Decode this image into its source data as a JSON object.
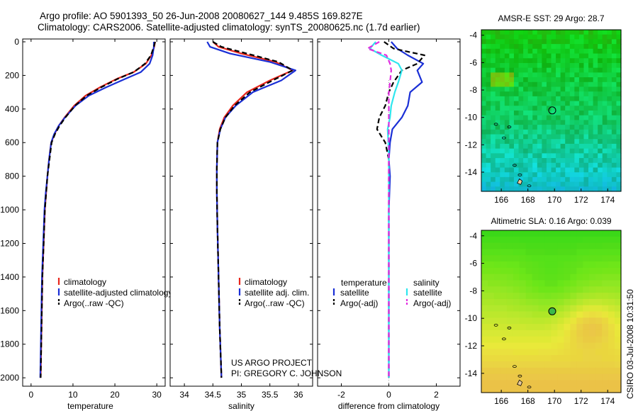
{
  "header": {
    "line1": "Argo profile: AO 5901393_50 26-Jun-2008 20080627_144 9.485S 169.827E",
    "line2": "Climatology: CARS2006. Satellite-adjusted climatology: synTS_20080625.nc (1.7d earlier)"
  },
  "side_label": "CSIRO 03-Jul-2008 10:31:50",
  "project": {
    "line1": "US ARGO PROJECT",
    "line2": "PI: GREGORY C. JOHNSON"
  },
  "colors": {
    "red": "#e8261c",
    "blue": "#1a2fd6",
    "black": "#000000",
    "cyan": "#2ee6ee",
    "magenta": "#e22ee0"
  },
  "chart_data": [
    {
      "id": "temperature",
      "type": "line",
      "xlabel": "temperature",
      "xlim": [
        -2,
        32
      ],
      "ylim": [
        0,
        2050
      ],
      "xticks": [
        0,
        10,
        20,
        30
      ],
      "xtick_labels": [
        "0",
        "10",
        "20",
        "30"
      ],
      "yticks": [
        0,
        200,
        400,
        600,
        800,
        1000,
        1200,
        1400,
        1600,
        1800,
        2000
      ],
      "ytick_labels": [
        "0",
        "200",
        "400",
        "600",
        "800",
        "1000",
        "1200",
        "1400",
        "1600",
        "1800",
        "2000"
      ],
      "legend": [
        "climatology",
        "satellite-adjusted climatology",
        "Argo(..raw -QC)"
      ],
      "series": [
        {
          "name": "climatology",
          "color": "red",
          "dash": false,
          "x": [
            29.6,
            29.4,
            28.7,
            27.4,
            24.5,
            20.5,
            16.5,
            13.0,
            10.3,
            8.0,
            6.6,
            5.6,
            4.8,
            4.3,
            3.9,
            3.6,
            3.3,
            3.0,
            2.7,
            2.5,
            2.3
          ],
          "y": [
            0,
            30,
            80,
            130,
            180,
            220,
            270,
            320,
            380,
            450,
            500,
            550,
            600,
            700,
            800,
            900,
            1000,
            1200,
            1400,
            1700,
            2000
          ]
        },
        {
          "name": "satellite-adjusted climatology",
          "color": "blue",
          "dash": false,
          "x": [
            29.3,
            29.3,
            29.0,
            28.3,
            26.2,
            22.5,
            18.0,
            13.8,
            10.6,
            8.1,
            6.6,
            5.5,
            4.8,
            4.3,
            3.9,
            3.5,
            3.2,
            2.9,
            2.6,
            2.4,
            2.2
          ],
          "y": [
            0,
            30,
            80,
            130,
            180,
            220,
            270,
            320,
            380,
            450,
            500,
            550,
            600,
            700,
            800,
            900,
            1000,
            1200,
            1400,
            1700,
            2000
          ]
        },
        {
          "name": "Argo(..raw -QC)",
          "color": "black",
          "dash": true,
          "x": [
            29.6,
            29.3,
            28.6,
            27.2,
            24.5,
            20.7,
            16.8,
            13.3,
            10.5,
            8.2,
            6.8,
            5.7,
            4.9,
            4.4,
            3.9,
            3.6,
            3.3,
            3.0,
            2.7,
            2.5,
            2.3
          ],
          "y": [
            0,
            30,
            80,
            130,
            180,
            220,
            270,
            320,
            380,
            450,
            500,
            550,
            600,
            700,
            800,
            900,
            1000,
            1200,
            1400,
            1700,
            2000
          ]
        }
      ]
    },
    {
      "id": "salinity",
      "type": "line",
      "xlabel": "salinity",
      "xlim": [
        33.75,
        36.25
      ],
      "ylim": [
        0,
        2050
      ],
      "xticks": [
        34,
        34.5,
        35,
        35.5,
        36
      ],
      "xtick_labels": [
        "34",
        "34.5",
        "35",
        "35.5",
        "36"
      ],
      "legend": [
        "climatology",
        "satellite adj. clim.",
        "Argo(..raw -QC)"
      ],
      "series": [
        {
          "name": "climatology",
          "color": "red",
          "dash": false,
          "x": [
            34.5,
            34.6,
            35.0,
            35.6,
            35.9,
            35.5,
            35.1,
            34.85,
            34.7,
            34.62,
            34.58,
            34.57,
            34.57,
            34.58,
            34.6,
            34.62,
            34.65
          ],
          "y": [
            0,
            30,
            70,
            120,
            170,
            230,
            300,
            380,
            450,
            520,
            600,
            750,
            900,
            1100,
            1400,
            1700,
            2000
          ]
        },
        {
          "name": "satellite adj. clim.",
          "color": "blue",
          "dash": false,
          "x": [
            34.4,
            34.45,
            34.8,
            35.5,
            35.95,
            35.7,
            35.2,
            34.9,
            34.72,
            34.63,
            34.58,
            34.57,
            34.57,
            34.58,
            34.6,
            34.62,
            34.65
          ],
          "y": [
            0,
            30,
            70,
            120,
            170,
            230,
            300,
            380,
            450,
            520,
            600,
            750,
            900,
            1100,
            1400,
            1700,
            2000
          ]
        },
        {
          "name": "Argo(..raw -QC)",
          "color": "black",
          "dash": true,
          "x": [
            34.5,
            34.65,
            35.1,
            35.65,
            35.9,
            35.55,
            35.15,
            34.88,
            34.72,
            34.63,
            34.58,
            34.57,
            34.57,
            34.58,
            34.6,
            34.62,
            34.65
          ],
          "y": [
            0,
            30,
            70,
            120,
            170,
            230,
            300,
            380,
            450,
            520,
            600,
            750,
            900,
            1100,
            1400,
            1700,
            2000
          ]
        }
      ]
    },
    {
      "id": "difference",
      "type": "line",
      "xlabel": "difference from climatology",
      "xlim": [
        -3,
        3
      ],
      "ylim": [
        0,
        2050
      ],
      "xticks": [
        -2,
        0,
        2
      ],
      "xtick_labels": [
        "-2",
        "0",
        "2"
      ],
      "legend_headers": [
        "temperature",
        "salinity"
      ],
      "legend": [
        "satellite",
        "Argo(-adj)",
        "satellite",
        "Argo(-adj)"
      ],
      "series": [
        {
          "name": "temperature satellite",
          "color": "blue",
          "dash": false,
          "x": [
            0.1,
            0.35,
            0.8,
            1.45,
            1.2,
            1.4,
            0.9,
            0.8,
            0.55,
            0.15,
            0.05,
            0.0,
            0.05,
            0.0,
            0.0,
            0.0,
            0.0
          ],
          "y": [
            0,
            40,
            80,
            130,
            170,
            240,
            300,
            380,
            450,
            520,
            600,
            700,
            800,
            1000,
            1200,
            1500,
            2000
          ]
        },
        {
          "name": "temperature Argo(-adj)",
          "color": "black",
          "dash": true,
          "x": [
            -0.2,
            0.2,
            1.5,
            1.2,
            0.55,
            0.2,
            0.0,
            -0.15,
            -0.4,
            -0.5,
            -0.15,
            0.0,
            0.0,
            0.0,
            0.0,
            0.0,
            0.0
          ],
          "y": [
            0,
            40,
            80,
            130,
            170,
            240,
            300,
            380,
            450,
            520,
            600,
            700,
            800,
            1000,
            1200,
            1500,
            2000
          ]
        },
        {
          "name": "salinity satellite",
          "color": "cyan",
          "dash": false,
          "x": [
            -0.55,
            -0.8,
            -0.3,
            0.4,
            0.55,
            0.4,
            0.25,
            0.1,
            0.05,
            -0.05,
            -0.02,
            0.0,
            0.0,
            0.0,
            0.0,
            0.0,
            0.0
          ],
          "y": [
            0,
            40,
            80,
            130,
            170,
            240,
            300,
            380,
            450,
            520,
            600,
            700,
            800,
            1000,
            1200,
            1500,
            2000
          ]
        },
        {
          "name": "salinity Argo(-adj)",
          "color": "magenta",
          "dash": true,
          "x": [
            -0.4,
            -0.9,
            -0.1,
            0.05,
            0.1,
            0.05,
            0.0,
            0.0,
            0.0,
            0.0,
            0.0,
            0.0,
            0.0,
            0.0,
            0.0,
            0.0,
            0.0
          ],
          "y": [
            0,
            40,
            80,
            130,
            170,
            240,
            300,
            380,
            450,
            520,
            600,
            700,
            800,
            1000,
            1200,
            1500,
            2000
          ]
        }
      ]
    },
    {
      "id": "amsre_map",
      "type": "heatmap",
      "title": "AMSR-E SST: 29 Argo: 28.7",
      "xlim": [
        164.5,
        175
      ],
      "ylim": [
        -15.4,
        -3.6
      ],
      "xticks": [
        166,
        168,
        170,
        172,
        174
      ],
      "xtick_labels": [
        "166",
        "168",
        "170",
        "172",
        "174"
      ],
      "yticks": [
        -4,
        -6,
        -8,
        -10,
        -12,
        -14
      ],
      "ytick_labels": [
        "-4",
        "-6",
        "-8",
        "-10",
        "-12",
        "-14"
      ],
      "argo_position": [
        169.83,
        -9.49
      ]
    },
    {
      "id": "sla_map",
      "type": "heatmap",
      "title": "Altimetric SLA: 0.16 Argo: 0.039",
      "xlim": [
        164.5,
        175
      ],
      "ylim": [
        -15.4,
        -3.6
      ],
      "xticks": [
        166,
        168,
        170,
        172,
        174
      ],
      "xtick_labels": [
        "166",
        "168",
        "170",
        "172",
        "174"
      ],
      "yticks": [
        -4,
        -6,
        -8,
        -10,
        -12,
        -14
      ],
      "ytick_labels": [
        "-4",
        "-6",
        "-8",
        "-10",
        "-12",
        "-14"
      ],
      "argo_position": [
        169.83,
        -9.49
      ]
    }
  ]
}
